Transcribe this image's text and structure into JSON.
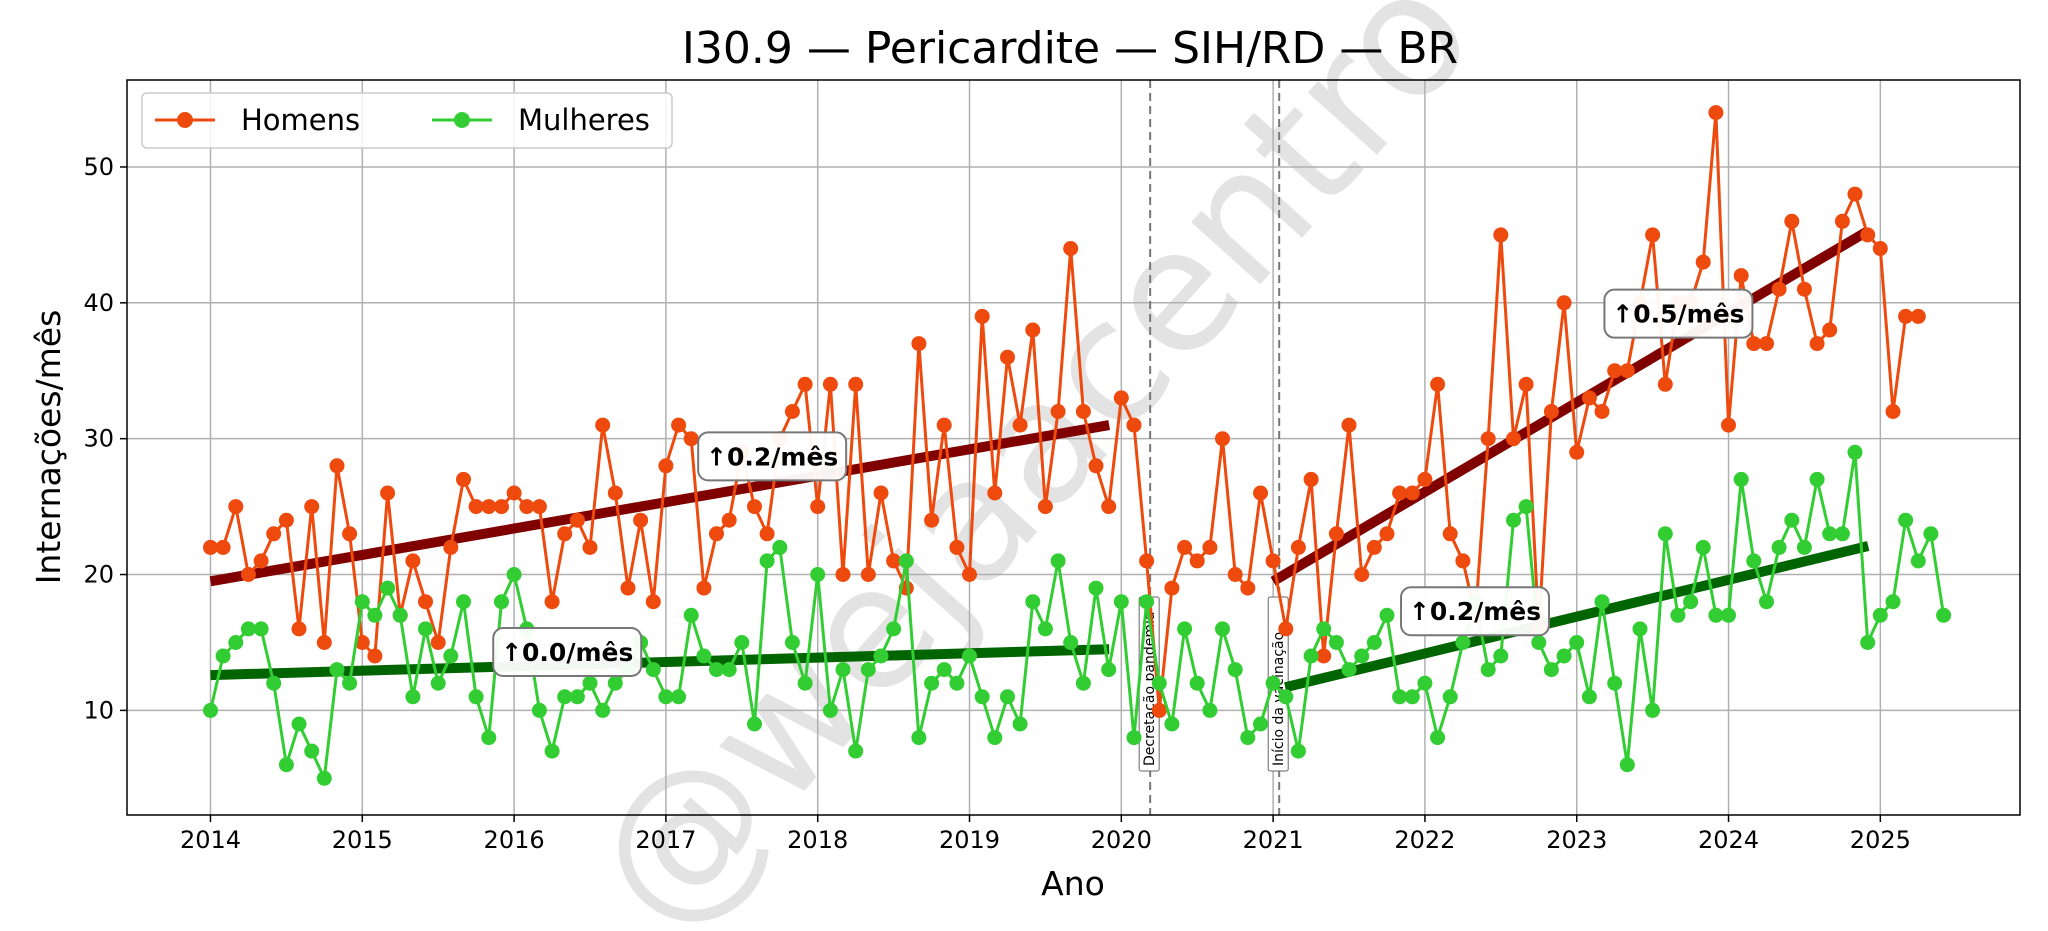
{
  "chart_data": {
    "type": "line",
    "title": "I30.9 — Pericardite — SIH/RD — BR",
    "xlabel": "Ano",
    "ylabel": "Internações/mês",
    "xlim": [
      2013.45,
      2025.92
    ],
    "ylim": [
      2.3,
      56.4
    ],
    "x_ticks": [
      2014,
      2015,
      2016,
      2017,
      2018,
      2019,
      2020,
      2021,
      2022,
      2023,
      2024,
      2025
    ],
    "y_ticks": [
      10,
      20,
      30,
      40,
      50
    ],
    "grid": true,
    "legend": {
      "placement": "top-left",
      "columns": 2
    },
    "watermark": "@wejaacentro",
    "x_start": 2014.0,
    "x_step": 0.0833333,
    "series": [
      {
        "name": "Homens",
        "color": "#ee4a0e",
        "values": [
          22,
          22,
          25,
          20,
          21,
          23,
          24,
          16,
          25,
          15,
          28,
          23,
          15,
          14,
          26,
          17,
          21,
          18,
          15,
          22,
          27,
          25,
          25,
          25,
          26,
          25,
          25,
          18,
          23,
          24,
          22,
          31,
          26,
          19,
          24,
          18,
          28,
          31,
          30,
          19,
          23,
          24,
          29,
          25,
          23,
          30,
          32,
          34,
          25,
          34,
          20,
          34,
          20,
          26,
          21,
          19,
          37,
          24,
          31,
          22,
          20,
          39,
          26,
          36,
          31,
          38,
          25,
          32,
          44,
          32,
          28,
          25,
          33,
          31,
          21,
          10,
          19,
          22,
          21,
          22,
          30,
          20,
          19,
          26,
          21,
          16,
          22,
          27,
          14,
          23,
          31,
          20,
          22,
          23,
          26,
          26,
          27,
          34,
          23,
          21,
          17,
          30,
          45,
          30,
          34,
          16,
          32,
          40,
          29,
          33,
          32,
          35,
          35,
          40,
          45,
          34,
          40,
          40,
          43,
          54,
          31,
          42,
          37,
          37,
          41,
          46,
          41,
          37,
          38,
          46,
          48,
          45,
          44,
          32,
          39,
          39
        ]
      },
      {
        "name": "Mulheres",
        "color": "#32cd32",
        "values": [
          10,
          14,
          15,
          16,
          16,
          12,
          6,
          9,
          7,
          5,
          13,
          12,
          18,
          17,
          19,
          17,
          11,
          16,
          12,
          14,
          18,
          11,
          8,
          18,
          20,
          16,
          10,
          7,
          11,
          11,
          12,
          10,
          12,
          13,
          15,
          13,
          11,
          11,
          17,
          14,
          13,
          13,
          15,
          9,
          21,
          22,
          15,
          12,
          20,
          10,
          13,
          7,
          13,
          14,
          16,
          21,
          8,
          12,
          13,
          12,
          14,
          11,
          8,
          11,
          9,
          18,
          16,
          21,
          15,
          12,
          19,
          13,
          18,
          8,
          18,
          12,
          9,
          16,
          12,
          10,
          16,
          13,
          8,
          9,
          12,
          11,
          7,
          14,
          16,
          15,
          13,
          14,
          15,
          17,
          11,
          11,
          12,
          8,
          11,
          15,
          18,
          13,
          14,
          24,
          25,
          15,
          13,
          14,
          15,
          11,
          18,
          12,
          6,
          16,
          10,
          23,
          17,
          18,
          22,
          17,
          17,
          27,
          21,
          18,
          22,
          24,
          22,
          27,
          23,
          23,
          29,
          15,
          17,
          18,
          24,
          21,
          23,
          17
        ]
      }
    ],
    "trend_lines": [
      {
        "series": "Homens",
        "x": [
          2014.0,
          2019.92
        ],
        "y": [
          19.5,
          31.0
        ],
        "color": "#800000",
        "label": "↑0.2/mês",
        "label_at": [
          2017.7,
          28.7
        ]
      },
      {
        "series": "Mulheres",
        "x": [
          2014.0,
          2019.92
        ],
        "y": [
          12.6,
          14.5
        ],
        "color": "#006400",
        "label": "↑0.0/mês",
        "label_at": [
          2016.35,
          14.3
        ]
      },
      {
        "series": "Homens",
        "x": [
          2021.0,
          2024.92
        ],
        "y": [
          19.5,
          45.3
        ],
        "color": "#800000",
        "label": "↑0.5/mês",
        "label_at": [
          2023.67,
          39.2
        ]
      },
      {
        "series": "Mulheres",
        "x": [
          2021.08,
          2024.92
        ],
        "y": [
          11.7,
          22.1
        ],
        "color": "#006400",
        "label": "↑0.2/mês",
        "label_at": [
          2022.33,
          17.3
        ]
      }
    ],
    "events": [
      {
        "x": 2020.19,
        "label": "Decretação pandemia"
      },
      {
        "x": 2021.04,
        "label": "Início da vacinação"
      }
    ]
  }
}
